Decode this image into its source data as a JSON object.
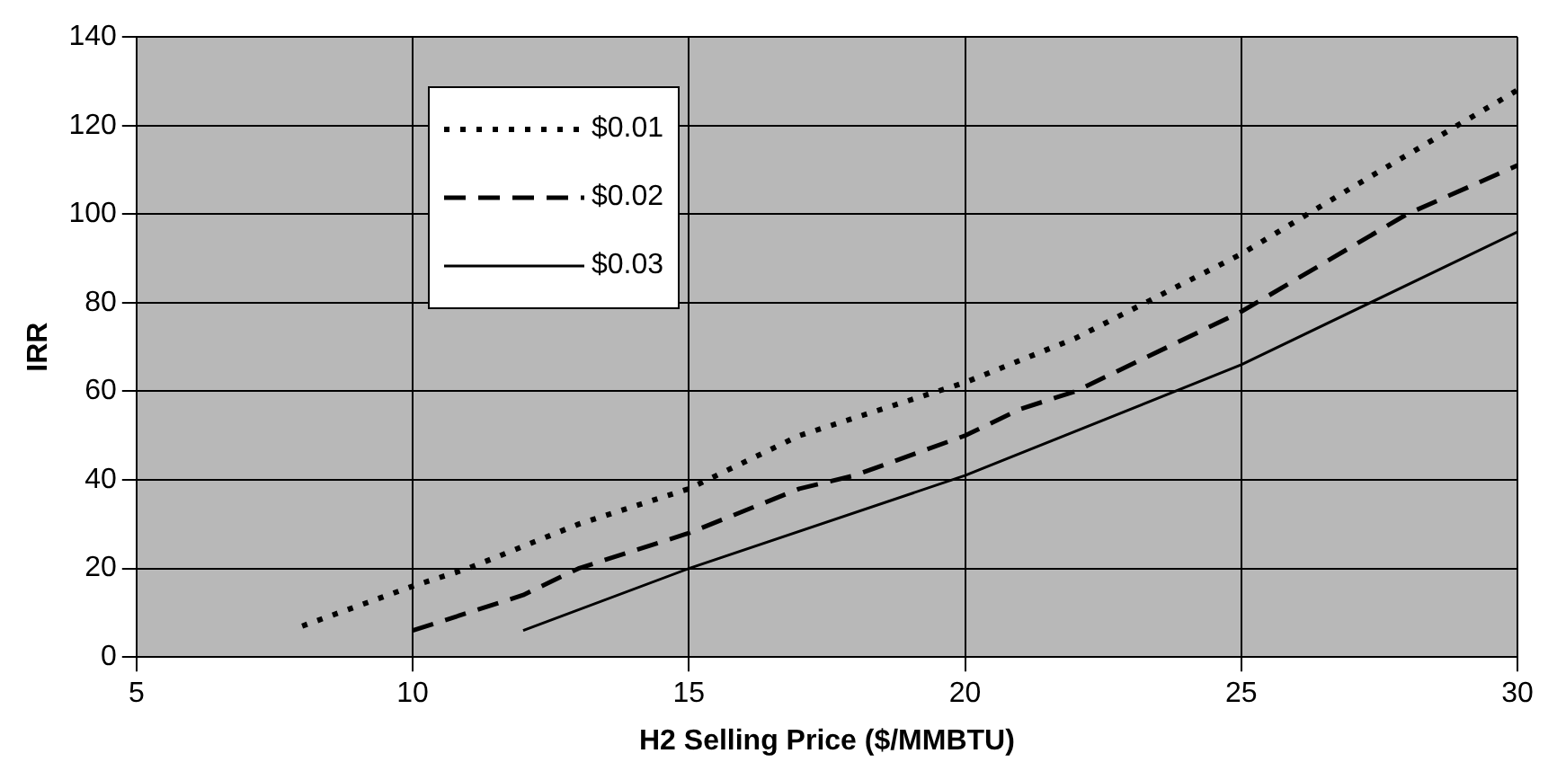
{
  "chart_data": {
    "type": "line",
    "xlabel": "H2 Selling Price ($/MMBTU)",
    "ylabel": "IRR",
    "xlim": [
      5,
      30
    ],
    "xticks": [
      5,
      10,
      15,
      20,
      25,
      30
    ],
    "ylim": [
      0,
      140
    ],
    "yticks": [
      0,
      20,
      40,
      60,
      80,
      100,
      120,
      140
    ],
    "grid": true,
    "legend": "top left",
    "marker": "none",
    "series": [
      {
        "name": "$0.01",
        "color": "#000000",
        "line_style": "dotted",
        "x": [
          8,
          10,
          11,
          13,
          15,
          17,
          20,
          22,
          25,
          27,
          30
        ],
        "values": [
          7,
          16,
          20,
          30,
          38,
          50,
          62,
          72,
          91,
          106,
          128
        ]
      },
      {
        "name": "$0.02",
        "color": "#000000",
        "line_style": "dashed",
        "x": [
          10,
          11,
          12,
          13,
          15,
          17,
          18,
          20,
          21,
          22,
          25,
          28,
          30
        ],
        "values": [
          6,
          10,
          14,
          20,
          28,
          38,
          41,
          50,
          56,
          60,
          78,
          100,
          111
        ]
      },
      {
        "name": "$0.03",
        "color": "#000000",
        "line_style": "solid",
        "x": [
          12,
          15,
          20,
          25,
          30
        ],
        "values": [
          6,
          20,
          41,
          66,
          96
        ]
      }
    ]
  }
}
